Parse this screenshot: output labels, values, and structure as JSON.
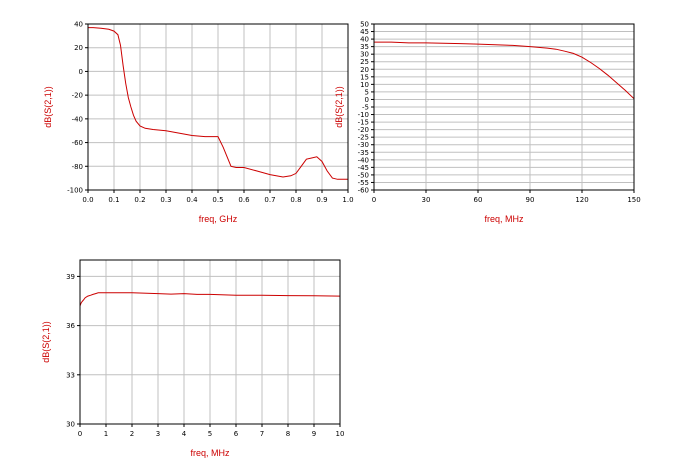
{
  "colors": {
    "trace": "#cc0000",
    "label": "#cc0000",
    "grid": "#c0c0c0",
    "frame": "#000000"
  },
  "chart_data": [
    {
      "type": "line",
      "xlabel": "freq, GHz",
      "ylabel": "dB(S(2,1))",
      "xlim": [
        0,
        1
      ],
      "ylim": [
        -100,
        40
      ],
      "xticks": [
        0,
        0.1,
        0.2,
        0.3,
        0.4,
        0.5,
        0.6,
        0.7,
        0.8,
        0.9,
        1
      ],
      "xtick_labels": [
        "0.0",
        "0.1",
        "0.2",
        "0.3",
        "0.4",
        "0.5",
        "0.6",
        "0.7",
        "0.8",
        "0.9",
        "1.0"
      ],
      "yticks": [
        -100,
        -80,
        -60,
        -40,
        -20,
        0,
        20,
        40
      ],
      "ytick_labels": [
        "-100",
        "-80",
        "-60",
        "-40",
        "-20",
        "0",
        "20",
        "40"
      ],
      "grid": true,
      "series": [
        {
          "x": [
            0,
            0.02,
            0.05,
            0.08,
            0.1,
            0.115,
            0.125,
            0.135,
            0.145,
            0.155,
            0.165,
            0.175,
            0.185,
            0.2,
            0.22,
            0.25,
            0.3,
            0.35,
            0.4,
            0.45,
            0.48,
            0.5,
            0.52,
            0.55,
            0.57,
            0.6,
            0.65,
            0.7,
            0.75,
            0.78,
            0.8,
            0.82,
            0.84,
            0.86,
            0.88,
            0.9,
            0.92,
            0.94,
            0.96,
            0.98,
            1
          ],
          "y": [
            37,
            37,
            36.5,
            35.5,
            34,
            31,
            22,
            5,
            -10,
            -22,
            -30,
            -37,
            -42,
            -46,
            -48,
            -49,
            -50,
            -52,
            -54,
            -55,
            -55,
            -55,
            -64,
            -80,
            -81,
            -81,
            -84,
            -87,
            -89,
            -88,
            -86,
            -80,
            -74,
            -73,
            -72,
            -76,
            -84,
            -90,
            -91,
            -91,
            -91
          ]
        }
      ]
    },
    {
      "type": "line",
      "xlabel": "freq, MHz",
      "ylabel": "dB(S(2,1))",
      "xlim": [
        0,
        150
      ],
      "ylim": [
        -60,
        50
      ],
      "xticks": [
        0,
        30,
        60,
        90,
        120,
        150
      ],
      "xtick_labels": [
        "0",
        "30",
        "60",
        "90",
        "120",
        "150"
      ],
      "yticks": [
        -60,
        -55,
        -50,
        -45,
        -40,
        -35,
        -30,
        -25,
        -20,
        -15,
        -10,
        -5,
        0,
        5,
        10,
        15,
        20,
        25,
        30,
        35,
        40,
        45,
        50
      ],
      "ytick_labels": [
        "-60",
        "-55",
        "-50",
        "-45",
        "-40",
        "-35",
        "-30",
        "-25",
        "-20",
        "-15",
        "-10",
        "-5",
        "0",
        "5",
        "10",
        "15",
        "20",
        "25",
        "30",
        "35",
        "40",
        "45",
        "50"
      ],
      "grid": true,
      "series": [
        {
          "x": [
            0,
            10,
            20,
            30,
            40,
            50,
            60,
            70,
            80,
            90,
            100,
            105,
            110,
            115,
            120,
            125,
            130,
            135,
            140,
            145,
            150
          ],
          "y": [
            38,
            38,
            37.5,
            37.5,
            37.3,
            37,
            36.7,
            36.3,
            35.8,
            35,
            34,
            33.3,
            32,
            30.5,
            28,
            24.5,
            20.5,
            16,
            11,
            6,
            0.5
          ]
        }
      ]
    },
    {
      "type": "line",
      "xlabel": "freq, MHz",
      "ylabel": "dB(S(2,1))",
      "xlim": [
        0,
        10
      ],
      "ylim": [
        30,
        40
      ],
      "xticks": [
        0,
        1,
        2,
        3,
        4,
        5,
        6,
        7,
        8,
        9,
        10
      ],
      "xtick_labels": [
        "0",
        "1",
        "2",
        "3",
        "4",
        "5",
        "6",
        "7",
        "8",
        "9",
        "10"
      ],
      "yticks": [
        30,
        33,
        36,
        39
      ],
      "ytick_labels": [
        "30",
        "33",
        "36",
        "39"
      ],
      "grid": true,
      "series": [
        {
          "x": [
            0,
            0.05,
            0.1,
            0.15,
            0.2,
            0.3,
            0.4,
            0.5,
            0.6,
            0.7,
            0.8,
            1,
            2,
            3,
            3.5,
            4,
            4.5,
            5,
            6,
            7,
            8,
            9,
            10
          ],
          "y": [
            37.2,
            37.4,
            37.5,
            37.6,
            37.7,
            37.8,
            37.85,
            37.9,
            37.95,
            38,
            38,
            38,
            38,
            37.95,
            37.92,
            37.95,
            37.9,
            37.9,
            37.85,
            37.85,
            37.83,
            37.82,
            37.8
          ]
        }
      ]
    }
  ]
}
